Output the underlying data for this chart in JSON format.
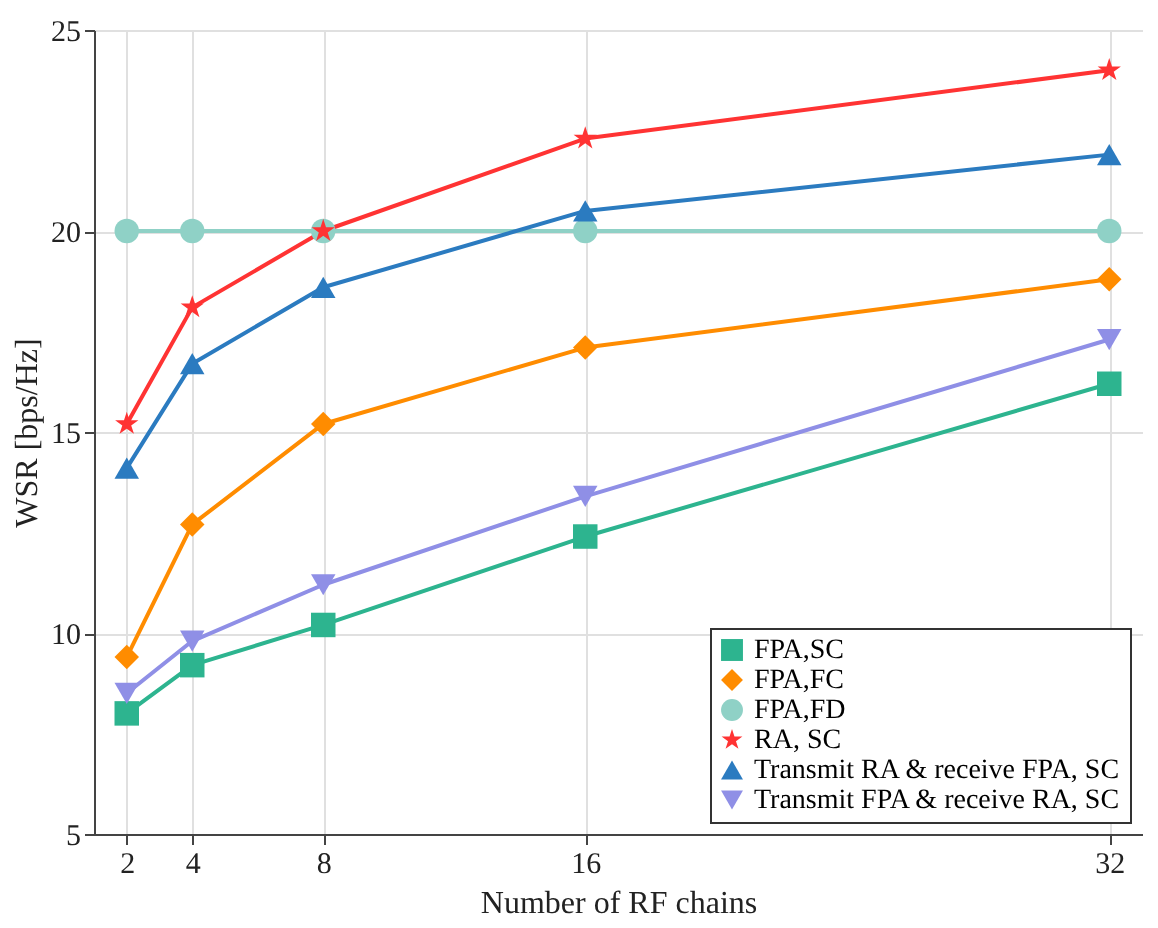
{
  "chart_data": {
    "type": "line",
    "xlabel": "Number of RF chains",
    "ylabel": "WSR [bps/Hz]",
    "x": [
      2,
      4,
      8,
      16,
      32
    ],
    "xlim": [
      1,
      33
    ],
    "xticks": [
      2,
      4,
      8,
      16,
      32
    ],
    "ylim": [
      5,
      25
    ],
    "yticks": [
      5,
      10,
      15,
      20,
      25
    ],
    "grid": true,
    "legend": "bottom right",
    "line_style": "solid",
    "series": [
      {
        "name": "FPA,SC",
        "color": "#2db48f",
        "marker": "square",
        "values": [
          8.0,
          9.2,
          10.2,
          12.4,
          16.2
        ]
      },
      {
        "name": "FPA,FC",
        "color": "#ff8c00",
        "marker": "diamond",
        "values": [
          9.4,
          12.7,
          15.2,
          17.1,
          18.8
        ]
      },
      {
        "name": "FPA,FD",
        "color": "#8fd1c6",
        "marker": "circle",
        "values": [
          20,
          20,
          20,
          20,
          20
        ]
      },
      {
        "name": "RA, SC",
        "color": "#ff3333",
        "marker": "star",
        "values": [
          15.2,
          18.1,
          20.0,
          22.3,
          24.0
        ]
      },
      {
        "name": "Transmit RA & receive FPA, SC",
        "color": "#2b7bc0",
        "marker": "triangle",
        "values": [
          14.1,
          16.7,
          18.6,
          20.5,
          21.9
        ]
      },
      {
        "name": "Transmit FPA & receive RA, SC",
        "color": "#8f8fe6",
        "marker": "triangle-down",
        "values": [
          8.5,
          9.8,
          11.2,
          13.4,
          17.3
        ]
      }
    ]
  }
}
